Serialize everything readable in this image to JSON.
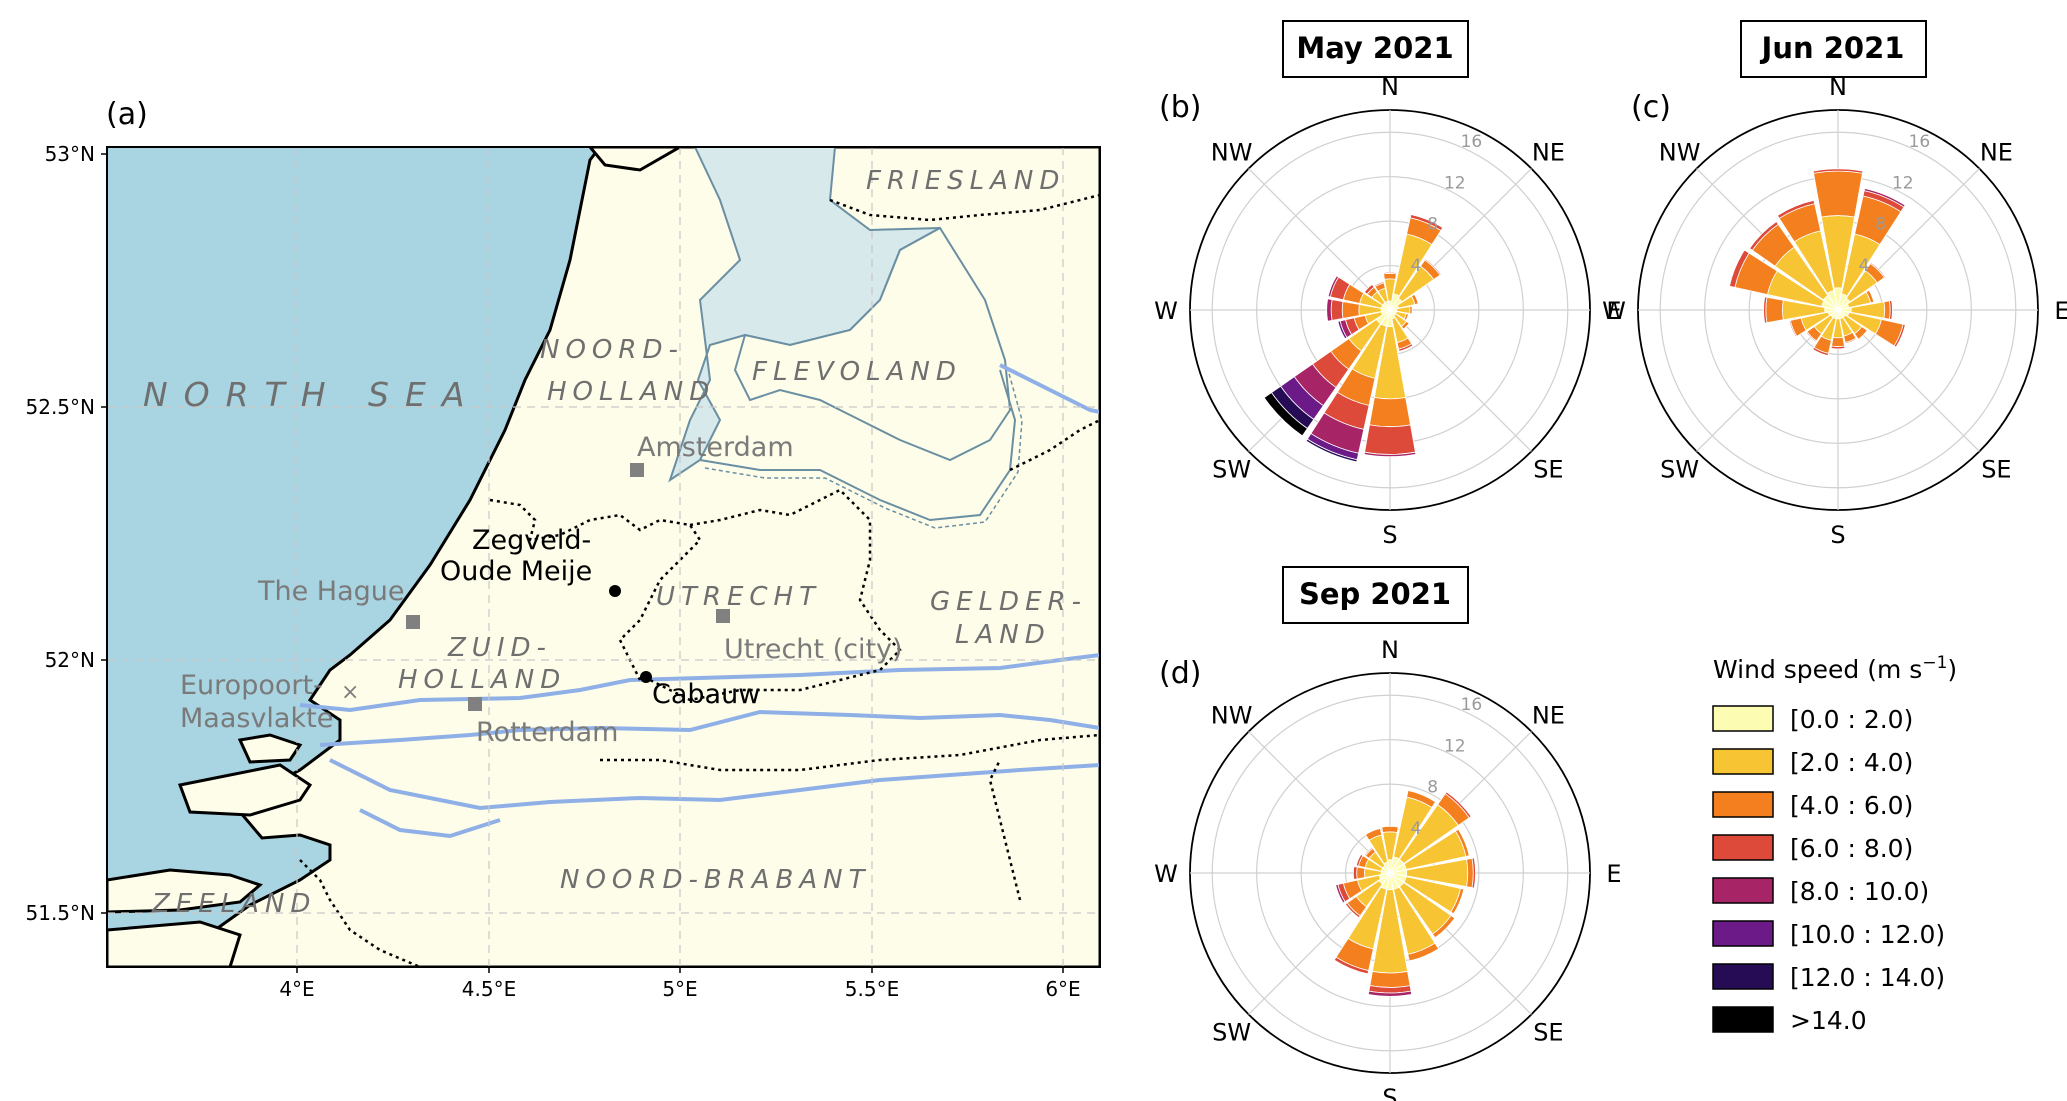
{
  "figure": {
    "panel_labels": [
      "(a)",
      "(b)",
      "(c)",
      "(d)"
    ]
  },
  "map": {
    "lat_labels": [
      "53°N",
      "52.5°N",
      "52°N",
      "51.5°N"
    ],
    "lon_labels": [
      "4°E",
      "4.5°E",
      "5°E",
      "5.5°E",
      "6°E"
    ],
    "sea_label": "NORTH SEA",
    "regions": {
      "friesland": "FRIESLAND",
      "noord_holland_1": "NOORD-",
      "noord_holland_2": "HOLLAND",
      "flevoland": "FLEVOLAND",
      "utrecht": "UTRECHT",
      "gelderland_1": "GELDER-",
      "gelderland_2": "LAND",
      "zuid_holland_1": "ZUID-",
      "zuid_holland_2": "HOLLAND",
      "noord_brabant": "NOORD-BRABANT",
      "zeeland": "ZEELAND"
    },
    "cities": {
      "amsterdam": "Amsterdam",
      "the_hague": "The Hague",
      "utrecht_city": "Utrecht (city)",
      "rotterdam": "Rotterdam",
      "europoort_1": "Europoort-",
      "europoort_2": "Maasvlakte"
    },
    "sites": {
      "zegveld_1": "Zegveld-",
      "zegveld_2": "Oude Meije",
      "cabauw": "Cabauw"
    },
    "colors": {
      "sea": "#a9d4e1",
      "land": "#fefde9",
      "lake": "#d7e9ea",
      "river": "#8fb0e6"
    }
  },
  "chart_data": [
    {
      "type": "windrose",
      "title": "May 2021",
      "panel": "(b)",
      "directions": [
        "N",
        "NNE",
        "NE",
        "ENE",
        "E",
        "ESE",
        "SE",
        "SSE",
        "S",
        "SSW",
        "SW",
        "WSW",
        "W",
        "WNW",
        "NW",
        "NNW"
      ],
      "direction_labels": [
        "N",
        "NE",
        "E",
        "SE",
        "S",
        "SW",
        "W",
        "NW"
      ],
      "radial_ticks": [
        4,
        8,
        12,
        16
      ],
      "stacked_frequency": [
        [
          0.8,
          2.0,
          0.5,
          0.1,
          0,
          0,
          0,
          0
        ],
        [
          1.5,
          5.5,
          1.5,
          0.3,
          0,
          0,
          0,
          0
        ],
        [
          1.3,
          3.5,
          0.7,
          0.1,
          0,
          0,
          0,
          0
        ],
        [
          0.8,
          1.5,
          0.3,
          0,
          0,
          0,
          0,
          0
        ],
        [
          0.6,
          1.2,
          0.2,
          0,
          0,
          0,
          0,
          0
        ],
        [
          0.6,
          0.9,
          0.2,
          0,
          0,
          0,
          0,
          0
        ],
        [
          0.6,
          1.2,
          0.3,
          0,
          0,
          0,
          0,
          0
        ],
        [
          0.8,
          2.2,
          0.6,
          0.2,
          0,
          0,
          0,
          0
        ],
        [
          1.5,
          6.5,
          2.5,
          2.5,
          0.2,
          0,
          0,
          0
        ],
        [
          1.5,
          4.8,
          2.5,
          2.2,
          2.2,
          0.6,
          0.2,
          0
        ],
        [
          1.5,
          3.0,
          2.0,
          2.0,
          2.0,
          1.5,
          1.0,
          0.8
        ],
        [
          0.8,
          1.5,
          1.0,
          0.8,
          0.5,
          0.2,
          0,
          0
        ],
        [
          0.8,
          2.0,
          1.5,
          1.0,
          0.4,
          0,
          0,
          0
        ],
        [
          0.8,
          2.0,
          1.5,
          1.2,
          0.2,
          0,
          0,
          0
        ],
        [
          0.8,
          1.2,
          0.5,
          0.3,
          0,
          0,
          0,
          0
        ],
        [
          0.8,
          1.2,
          0.5,
          0.1,
          0,
          0,
          0,
          0
        ]
      ]
    },
    {
      "type": "windrose",
      "title": "Jun 2021",
      "panel": "(c)",
      "directions": [
        "N",
        "NNE",
        "NE",
        "ENE",
        "E",
        "ESE",
        "SE",
        "SSE",
        "S",
        "SSW",
        "SW",
        "WSW",
        "W",
        "WNW",
        "NW",
        "NNW"
      ],
      "direction_labels": [
        "N",
        "NE",
        "E",
        "SE",
        "S",
        "SW",
        "W",
        "NW"
      ],
      "radial_ticks": [
        4,
        8,
        12,
        16
      ],
      "stacked_frequency": [
        [
          2.0,
          6.5,
          4.0,
          0.2,
          0,
          0,
          0,
          0
        ],
        [
          1.5,
          5.5,
          3.5,
          0.5,
          0.2,
          0,
          0,
          0
        ],
        [
          1.3,
          3.0,
          0.8,
          0.1,
          0,
          0,
          0,
          0
        ],
        [
          1.0,
          2.0,
          0.3,
          0,
          0,
          0,
          0,
          0
        ],
        [
          1.2,
          3.0,
          0.5,
          0.2,
          0,
          0,
          0,
          0
        ],
        [
          1.0,
          3.0,
          2.0,
          0.2,
          0,
          0,
          0,
          0
        ],
        [
          0.8,
          1.8,
          0.6,
          0,
          0,
          0,
          0,
          0
        ],
        [
          0.8,
          1.6,
          0.6,
          0.1,
          0,
          0,
          0,
          0
        ],
        [
          0.8,
          1.7,
          0.8,
          0.2,
          0,
          0,
          0,
          0
        ],
        [
          0.8,
          2.0,
          1.2,
          0.2,
          0,
          0,
          0,
          0
        ],
        [
          0.8,
          1.8,
          0.8,
          0.1,
          0,
          0,
          0,
          0
        ],
        [
          0.9,
          2.5,
          1.0,
          0.1,
          0,
          0,
          0,
          0
        ],
        [
          1.2,
          3.8,
          1.5,
          0.2,
          0,
          0,
          0,
          0
        ],
        [
          1.5,
          5.0,
          3.0,
          0.5,
          0,
          0,
          0,
          0
        ],
        [
          1.6,
          5.3,
          2.5,
          0.3,
          0,
          0,
          0,
          0
        ],
        [
          1.8,
          5.5,
          2.5,
          0.3,
          0,
          0,
          0,
          0
        ]
      ]
    },
    {
      "type": "windrose",
      "title": "Sep 2021",
      "panel": "(d)",
      "directions": [
        "N",
        "NNE",
        "NE",
        "ENE",
        "E",
        "ESE",
        "SE",
        "SSE",
        "S",
        "SSW",
        "SW",
        "WSW",
        "W",
        "WNW",
        "NW",
        "NNW"
      ],
      "direction_labels": [
        "N",
        "NE",
        "E",
        "SE",
        "S",
        "SW",
        "W",
        "NW"
      ],
      "radial_ticks": [
        4,
        8,
        12,
        16
      ],
      "stacked_frequency": [
        [
          1.2,
          2.5,
          0.5,
          0,
          0,
          0,
          0,
          0
        ],
        [
          1.5,
          5.5,
          0.6,
          0,
          0,
          0,
          0,
          0
        ],
        [
          1.5,
          6.0,
          1.2,
          0.2,
          0,
          0,
          0,
          0
        ],
        [
          1.5,
          5.5,
          0.3,
          0,
          0,
          0,
          0,
          0
        ],
        [
          1.5,
          5.5,
          0.5,
          0.2,
          0,
          0,
          0,
          0
        ],
        [
          1.5,
          5.0,
          0.3,
          0,
          0,
          0,
          0,
          0
        ],
        [
          1.5,
          5.2,
          0.4,
          0,
          0,
          0,
          0,
          0
        ],
        [
          1.5,
          6.0,
          0.6,
          0,
          0,
          0,
          0,
          0
        ],
        [
          1.5,
          7.5,
          1.3,
          0.5,
          0.3,
          0,
          0,
          0
        ],
        [
          1.5,
          5.5,
          2.0,
          0.3,
          0,
          0,
          0,
          0
        ],
        [
          1.2,
          2.5,
          1.0,
          0.2,
          0,
          0,
          0,
          0
        ],
        [
          1.0,
          2.0,
          1.3,
          0.5,
          0.2,
          0,
          0,
          0
        ],
        [
          0.8,
          1.5,
          0.7,
          0.3,
          0,
          0,
          0,
          0
        ],
        [
          0.8,
          1.5,
          0.6,
          0.2,
          0,
          0,
          0,
          0
        ],
        [
          0.8,
          1.5,
          0.4,
          0.1,
          0,
          0,
          0,
          0
        ],
        [
          1.0,
          2.5,
          0.6,
          0,
          0,
          0,
          0,
          0
        ]
      ]
    }
  ],
  "legend": {
    "title": "Wind speed (m s",
    "title_exponent": "−1",
    "title_close": ")",
    "bins": [
      {
        "label": "[0.0 : 2.0)",
        "color": "#fcfdb3"
      },
      {
        "label": "[2.0 : 4.0)",
        "color": "#f7c533"
      },
      {
        "label": "[4.0 : 6.0)",
        "color": "#f47f1f"
      },
      {
        "label": "[6.0 : 8.0)",
        "color": "#dd4a3a"
      },
      {
        "label": "[8.0 : 10.0)",
        "color": "#a72566"
      },
      {
        "label": "[10.0 : 12.0)",
        "color": "#6b1a88"
      },
      {
        "label": "[12.0 : 14.0)",
        "color": "#260b55"
      },
      {
        "label": ">14.0",
        "color": "#000000"
      }
    ]
  }
}
